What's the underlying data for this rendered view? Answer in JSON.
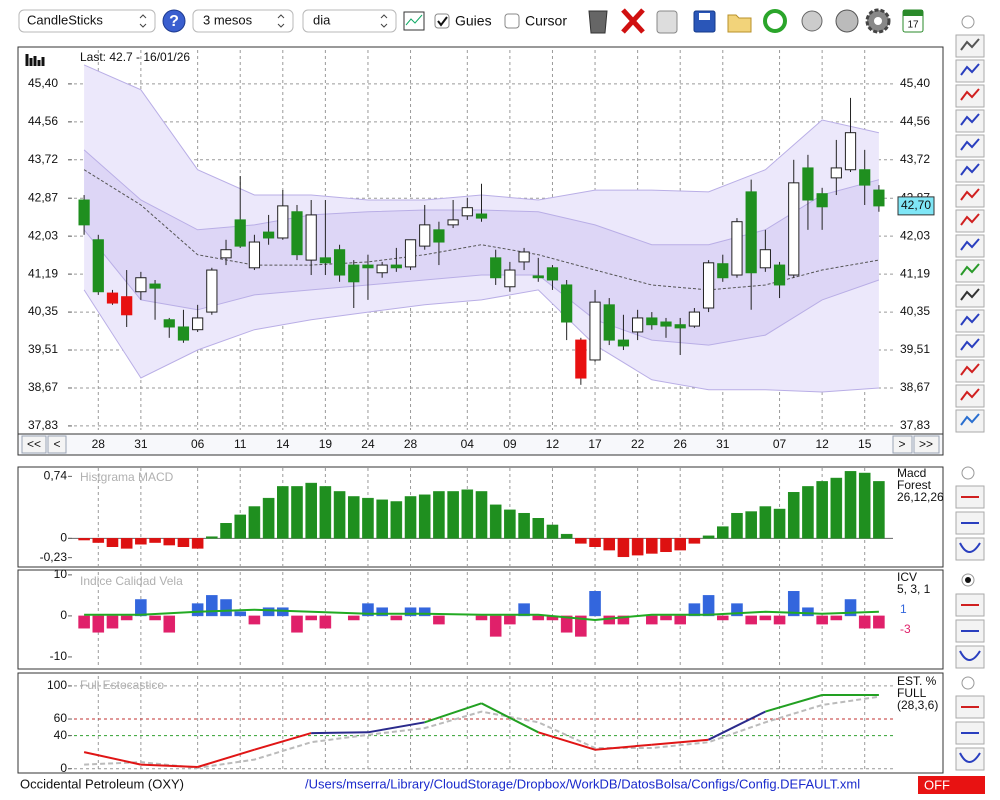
{
  "toolbar": {
    "chart_type": "CandleSticks",
    "help": "?",
    "period": "3 mesos",
    "interval": "dia",
    "guides": "Guies",
    "cursor": "Cursor",
    "calendar_day": "17"
  },
  "navigation": [
    "<<",
    "<",
    ">",
    ">>"
  ],
  "chart_data": [
    {
      "type": "candlestick",
      "info": "Last: 42.7 - 16/01/26",
      "categories": [
        null,
        "28",
        null,
        null,
        "31",
        null,
        null,
        null,
        "06",
        null,
        null,
        "11",
        null,
        null,
        "14",
        null,
        null,
        "19",
        null,
        null,
        "24",
        null,
        null,
        "28",
        null,
        null,
        null,
        "04",
        null,
        null,
        "09",
        null,
        null,
        "12",
        null,
        null,
        "17",
        null,
        null,
        "22",
        null,
        null,
        "26",
        null,
        null,
        "31",
        null,
        null,
        null,
        "07",
        null,
        null,
        "12",
        null,
        null,
        "15",
        null
      ],
      "open": [
        42.83,
        41.95,
        40.77,
        40.69,
        40.8,
        40.97,
        40.18,
        40.02,
        39.96,
        40.35,
        41.55,
        42.39,
        41.33,
        42.12,
        41.99,
        42.57,
        41.5,
        41.55,
        41.73,
        41.39,
        41.39,
        41.22,
        41.39,
        41.35,
        41.81,
        42.17,
        42.28,
        42.48,
        42.52,
        41.55,
        40.91,
        41.46,
        41.15,
        41.33,
        40.95,
        39.73,
        39.29,
        40.51,
        39.73,
        39.91,
        40.22,
        40.13,
        40.07,
        40.04,
        40.44,
        41.42,
        41.17,
        43.01,
        41.33,
        41.39,
        41.17,
        43.54,
        42.97,
        43.32,
        43.5,
        43.5,
        43.05
      ],
      "high": [
        42.94,
        42.06,
        40.84,
        41.28,
        41.24,
        41.06,
        40.22,
        40.4,
        40.51,
        41.33,
        41.95,
        43.36,
        42.06,
        42.5,
        43.05,
        42.72,
        42.83,
        42.83,
        41.84,
        41.5,
        41.62,
        41.46,
        41.77,
        41.95,
        42.72,
        42.35,
        42.83,
        42.88,
        43.19,
        41.73,
        41.46,
        41.77,
        41.55,
        41.39,
        41.06,
        39.78,
        40.84,
        40.66,
        40.29,
        40.4,
        40.35,
        40.22,
        40.22,
        40.44,
        41.5,
        41.62,
        42.43,
        43.28,
        42.17,
        41.46,
        43.72,
        43.83,
        43.1,
        44.16,
        45.09,
        43.94,
        43.16
      ],
      "low": [
        42.06,
        40.73,
        40.51,
        40.02,
        40.62,
        40.18,
        39.78,
        39.67,
        39.91,
        40.29,
        41.39,
        41.77,
        41.28,
        41.84,
        41.95,
        41.5,
        41.17,
        41.17,
        41.02,
        40.44,
        40.62,
        41.11,
        41.24,
        41.28,
        41.73,
        41.39,
        42.21,
        42.39,
        42.35,
        40.95,
        40.8,
        41.28,
        41.02,
        40.84,
        39.73,
        38.74,
        39.25,
        39.62,
        39.51,
        39.73,
        39.96,
        39.78,
        39.4,
        40.0,
        40.35,
        41.02,
        41.11,
        40.4,
        41.24,
        40.66,
        41.11,
        42.17,
        42.17,
        42.94,
        43.45,
        42.72,
        42.57
      ],
      "close": [
        42.28,
        40.8,
        40.55,
        40.29,
        41.11,
        40.88,
        40.02,
        39.73,
        40.22,
        41.28,
        41.73,
        41.81,
        41.9,
        41.99,
        42.7,
        41.62,
        42.5,
        41.44,
        41.17,
        41.02,
        41.33,
        41.39,
        41.33,
        41.95,
        42.28,
        41.9,
        42.39,
        42.66,
        42.43,
        41.11,
        41.28,
        41.68,
        41.11,
        41.06,
        40.13,
        38.89,
        40.57,
        39.73,
        39.6,
        40.22,
        40.07,
        40.04,
        40.0,
        40.35,
        41.44,
        41.11,
        42.35,
        41.22,
        41.73,
        40.95,
        43.21,
        42.83,
        42.68,
        43.54,
        44.32,
        43.16,
        42.7
      ],
      "colors": [
        "#1f8f1f",
        "#1f8f1f",
        "#e81010",
        "#e81010",
        "#ffffff",
        "#1f8f1f",
        "#1f8f1f",
        "#1f8f1f",
        "#ffffff",
        "#ffffff",
        "#ffffff",
        "#1f8f1f",
        "#ffffff",
        "#1f8f1f",
        "#ffffff",
        "#1f8f1f",
        "#ffffff",
        "#1f8f1f",
        "#1f8f1f",
        "#1f8f1f",
        "#1f8f1f",
        "#ffffff",
        "#1f8f1f",
        "#ffffff",
        "#ffffff",
        "#1f8f1f",
        "#ffffff",
        "#ffffff",
        "#1f8f1f",
        "#1f8f1f",
        "#ffffff",
        "#ffffff",
        "#1f8f1f",
        "#1f8f1f",
        "#1f8f1f",
        "#e81010",
        "#ffffff",
        "#1f8f1f",
        "#1f8f1f",
        "#ffffff",
        "#1f8f1f",
        "#1f8f1f",
        "#1f8f1f",
        "#ffffff",
        "#ffffff",
        "#1f8f1f",
        "#ffffff",
        "#1f8f1f",
        "#ffffff",
        "#1f8f1f",
        "#ffffff",
        "#1f8f1f",
        "#1f8f1f",
        "#ffffff",
        "#ffffff",
        "#1f8f1f",
        "#1f8f1f"
      ],
      "bands": {
        "x": [
          0,
          4,
          8,
          12,
          16,
          20,
          24,
          28,
          32,
          36,
          40,
          44,
          48,
          52,
          56
        ],
        "outer_upper": [
          45.82,
          45.27,
          43.5,
          42.94,
          42.94,
          42.83,
          42.83,
          42.94,
          42.83,
          43.05,
          43.05,
          43.01,
          43.5,
          44.6,
          44.32
        ],
        "outer_lower": [
          40.84,
          38.89,
          39.51,
          39.96,
          40.18,
          40.35,
          40.51,
          40.62,
          40.84,
          39.62,
          38.85,
          38.63,
          38.63,
          38.58,
          38.67
        ],
        "inner_upper": [
          43.94,
          42.83,
          42.17,
          42.28,
          42.5,
          42.57,
          42.61,
          42.61,
          42.57,
          42.28,
          41.84,
          41.84,
          42.17,
          42.94,
          43.28
        ],
        "inner_lower": [
          42.17,
          40.62,
          40.4,
          40.73,
          40.84,
          40.95,
          41.06,
          41.17,
          41.17,
          40.18,
          39.73,
          39.62,
          39.84,
          40.62,
          41.06
        ],
        "middle": [
          43.5,
          42.72,
          41.62,
          41.39,
          41.39,
          41.46,
          41.62,
          41.84,
          41.62,
          41.28,
          40.95,
          40.84,
          40.95,
          41.28,
          41.5
        ],
        "outer_color": "#ece8fb",
        "inner_color": "#ddd6f6",
        "edge_color": "#b9aee6",
        "middle_color": "#555555"
      },
      "last_marker": {
        "value": 42.7,
        "label": "42,70",
        "color": "#7fe6f6"
      },
      "ylim": [
        37.74,
        46.15
      ],
      "yticks": [
        {
          "value": 45.4,
          "label": "45,40"
        },
        {
          "value": 44.56,
          "label": "44,56"
        },
        {
          "value": 43.72,
          "label": "43,72"
        },
        {
          "value": 42.87,
          "label": "42,87"
        },
        {
          "value": 42.03,
          "label": "42,03"
        },
        {
          "value": 41.19,
          "label": "41,19"
        },
        {
          "value": 40.35,
          "label": "40,35"
        },
        {
          "value": 39.51,
          "label": "39,51"
        },
        {
          "value": 38.67,
          "label": "38,67"
        },
        {
          "value": 37.83,
          "label": "37,83"
        }
      ],
      "grid": true
    },
    {
      "type": "bar",
      "title": "Histgrama MACD",
      "side_labels": [
        "Macd",
        "Forest",
        "26,12,26"
      ],
      "values": [
        -0.02,
        -0.05,
        -0.1,
        -0.12,
        -0.07,
        -0.05,
        -0.08,
        -0.1,
        -0.12,
        0.02,
        0.18,
        0.28,
        0.38,
        0.48,
        0.62,
        0.62,
        0.66,
        0.62,
        0.56,
        0.5,
        0.48,
        0.46,
        0.44,
        0.5,
        0.52,
        0.56,
        0.56,
        0.58,
        0.56,
        0.4,
        0.34,
        0.3,
        0.24,
        0.16,
        0.05,
        -0.06,
        -0.1,
        -0.14,
        -0.22,
        -0.2,
        -0.18,
        -0.16,
        -0.14,
        -0.06,
        0.03,
        0.14,
        0.3,
        0.32,
        0.38,
        0.35,
        0.55,
        0.62,
        0.68,
        0.72,
        0.8,
        0.78,
        0.68
      ],
      "pos_color": "#1f8f1f",
      "neg_color": "#dd1111",
      "ylim": [
        -0.33,
        0.84
      ],
      "yticks": [
        {
          "value": 0.74,
          "label": "0,74"
        },
        0,
        {
          "value": -0.23,
          "label": "-0,23"
        }
      ]
    },
    {
      "type": "bar",
      "title": "Indice Calidad Vela",
      "side_labels": [
        "ICV",
        "5, 3, 1"
      ],
      "values": [
        -3,
        -4,
        -3,
        -1,
        4,
        -1,
        -4,
        0,
        3,
        5,
        4,
        1,
        -2,
        2,
        2,
        -4,
        -1,
        -3,
        0,
        -1,
        3,
        2,
        -1,
        2,
        2,
        -2,
        0,
        0,
        -1,
        -5,
        -2,
        3,
        -1,
        -1,
        -4,
        -5,
        6,
        -2,
        -2,
        0,
        -2,
        -1,
        -2,
        3,
        5,
        -1,
        3,
        -2,
        -1,
        -2,
        6,
        2,
        -2,
        -1,
        4,
        -3,
        -3
      ],
      "pos_color": "#3366dd",
      "neg_color": "#e0206a",
      "signal": {
        "x": [
          0,
          4,
          8,
          12,
          16,
          20,
          24,
          28,
          32,
          36,
          40,
          44,
          48,
          52,
          56
        ],
        "values": [
          0.3,
          0.3,
          1,
          1.5,
          1,
          0.5,
          0.5,
          0.3,
          0.3,
          -1,
          0.3,
          0.3,
          1,
          0.5,
          1
        ],
        "color": "#22aa22"
      },
      "current_values": [
        1,
        -3
      ],
      "ylim": [
        -12.7,
        10.7
      ],
      "yticks": [
        10,
        0,
        -10
      ]
    },
    {
      "type": "line",
      "title": "Full Estocastico",
      "side_labels": [
        "EST. %",
        "FULL",
        "(28,3,6)"
      ],
      "x": [
        0,
        4,
        8,
        12,
        16,
        20,
        24,
        28,
        32,
        36,
        40,
        44,
        48,
        52,
        56
      ],
      "k_values": [
        20,
        5,
        2,
        23,
        43,
        44,
        56,
        79,
        44,
        23,
        29,
        35,
        69,
        89,
        89
      ],
      "d_values": [
        5,
        8,
        1,
        11,
        32,
        41,
        49,
        69,
        56,
        25,
        25,
        32,
        56,
        77,
        87
      ],
      "k_colors": {
        "low": "#e01515",
        "mid": "#2b2b8c",
        "high": "#22a022"
      },
      "d_color": "#bbbbbb",
      "ylim": [
        -4,
        112
      ],
      "yticks": [
        100,
        60,
        40,
        0
      ],
      "grid_colors": [
        "#999999",
        "#c03030",
        "#30a030",
        "#999999"
      ]
    }
  ],
  "status": {
    "company": "Occidental Petroleum (OXY)",
    "config_path": "/Users/mserra/Library/CloudStorage/Dropbox/WorkDB/DatosBolsa/Configs/Config.DEFAULT.xml",
    "mode": "OFF"
  }
}
